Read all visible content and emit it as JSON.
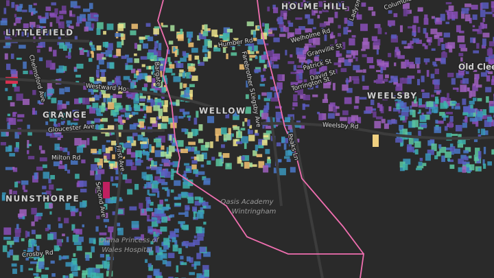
{
  "map": {
    "places": [
      "HOLME HILL",
      "LITTLEFIELD",
      "GRANGE",
      "WELLOW",
      "WEELSBY",
      "NUNSTHORPE",
      "Old Clee"
    ],
    "streets": [
      "Westward Ho",
      "Weelsby Rd",
      "Gloucester Ave",
      "Milton Rd",
      "Second Ave",
      "Peaks Ln",
      "Welholme Rd",
      "Granville St",
      "Patrick St",
      "David St",
      "Torrington St",
      "Humber Rd",
      "Farebrother St",
      "Legsby Ave",
      "Chelmsford Ave",
      "Crosby Rd",
      "Columbia Rd",
      "Ladysmith Rd",
      "Bargate",
      "First Ave"
    ],
    "pois": [
      [
        "Oasis Academy",
        "Wintringham"
      ],
      [
        "Diana Princess of",
        "Wales Hospital"
      ]
    ]
  }
}
